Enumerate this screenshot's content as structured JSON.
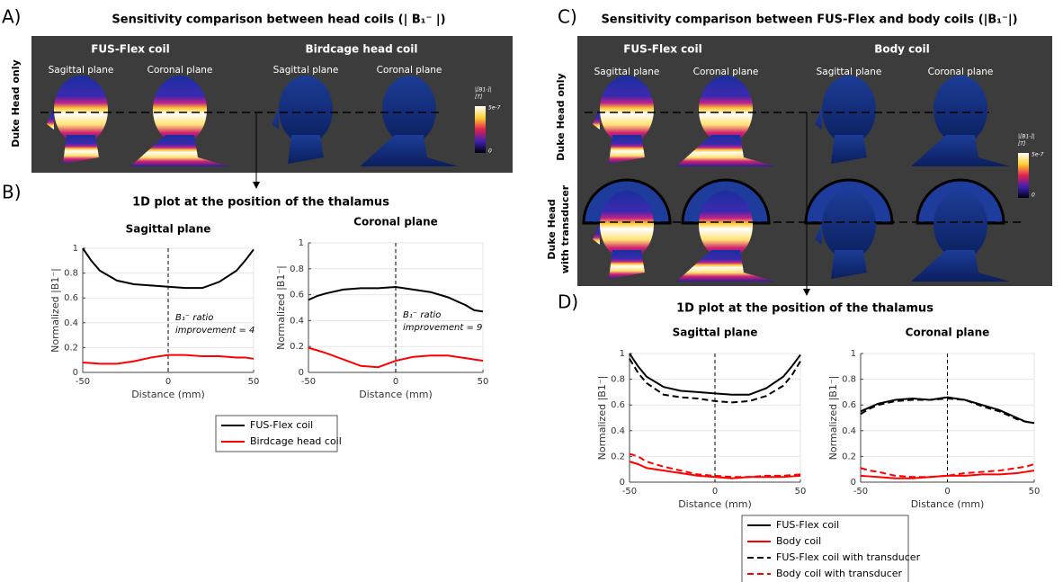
{
  "panels": {
    "A": {
      "label": "A)",
      "title": "Sensitivity comparison between head coils (| B₁⁻ |)",
      "groups": [
        {
          "name": "FUS-Flex coil",
          "planes": [
            "Sagittal plane",
            "Coronal plane"
          ]
        },
        {
          "name": "Birdcage head coil",
          "planes": [
            "Sagittal plane",
            "Coronal plane"
          ]
        }
      ],
      "row_labels": [
        "Duke Head only"
      ],
      "colorbar": {
        "title": [
          "|[B1-]|",
          "[T]"
        ],
        "max": "5e-7",
        "min": "0"
      }
    },
    "B": {
      "label": "B)",
      "title": "1D plot at the position of the thalamus"
    },
    "C": {
      "label": "C)",
      "title": "Sensitivity comparison between FUS-Flex and body coils (|B₁⁻|)",
      "groups": [
        {
          "name": "FUS-Flex coil",
          "planes": [
            "Sagittal plane",
            "Coronal plane"
          ]
        },
        {
          "name": "Body coil",
          "planes": [
            "Sagittal plane",
            "Coronal plane"
          ]
        }
      ],
      "row_labels": [
        "Duke Head only",
        "Duke Head",
        "with transducer"
      ],
      "colorbar": {
        "title": [
          "|[B1-]|",
          "[T]"
        ],
        "max": "5e-7",
        "min": "0"
      }
    },
    "D": {
      "label": "D)",
      "title": "1D plot at the position of the thalamus"
    }
  },
  "chart_data": [
    {
      "type": "line",
      "title": "Sagittal plane",
      "xlabel": "Distance (mm)",
      "ylabel": "Normalized |B1⁻|",
      "x": [
        -50,
        -45,
        -40,
        -30,
        -20,
        -10,
        0,
        10,
        20,
        30,
        40,
        45,
        50
      ],
      "series": [
        {
          "name": "FUS-Flex coil",
          "color": "#000000",
          "dashed": false,
          "values": [
            1.0,
            0.9,
            0.82,
            0.74,
            0.71,
            0.7,
            0.69,
            0.68,
            0.68,
            0.73,
            0.82,
            0.9,
            0.99
          ]
        },
        {
          "name": "Birdcage head coil",
          "color": "#ff0000",
          "dashed": false,
          "values": [
            0.08,
            0.075,
            0.07,
            0.07,
            0.09,
            0.12,
            0.14,
            0.14,
            0.13,
            0.13,
            0.12,
            0.12,
            0.11
          ]
        }
      ],
      "xlim": [
        -50,
        50
      ],
      "xticks": [
        -50,
        0,
        50
      ],
      "ylim": [
        0,
        1
      ],
      "yticks": [
        0,
        0.2,
        0.4,
        0.6,
        0.8,
        1
      ],
      "grid": true,
      "vline": 0,
      "annotation": [
        "B₁⁻ ratio",
        "improvement = 4"
      ]
    },
    {
      "type": "line",
      "title": "Coronal plane",
      "xlabel": "Distance (mm)",
      "ylabel": "Normalized |B1⁻|",
      "x": [
        -50,
        -45,
        -40,
        -30,
        -20,
        -10,
        0,
        10,
        20,
        30,
        40,
        45,
        50
      ],
      "series": [
        {
          "color": "#000000",
          "dashed": false,
          "values": [
            0.56,
            0.59,
            0.61,
            0.64,
            0.65,
            0.65,
            0.66,
            0.64,
            0.62,
            0.58,
            0.52,
            0.48,
            0.47
          ]
        },
        {
          "color": "#ff0000",
          "dashed": false,
          "values": [
            0.19,
            0.17,
            0.15,
            0.1,
            0.05,
            0.04,
            0.09,
            0.12,
            0.13,
            0.13,
            0.11,
            0.1,
            0.09
          ]
        }
      ],
      "xlim": [
        -50,
        50
      ],
      "xticks": [
        -50,
        0,
        50
      ],
      "ylim": [
        0,
        1
      ],
      "yticks": [
        0,
        0.2,
        0.4,
        0.6,
        0.8,
        1
      ],
      "grid": true,
      "vline": 0,
      "annotation": [
        "B₁⁻ ratio",
        "improvement = 9"
      ]
    },
    {
      "type": "line",
      "title": "Sagittal plane",
      "xlabel": "Distance (mm)",
      "ylabel": "Normalized |B1⁻|",
      "x": [
        -50,
        -45,
        -40,
        -30,
        -20,
        -10,
        0,
        10,
        20,
        30,
        40,
        45,
        50
      ],
      "series": [
        {
          "name": "FUS-Flex coil",
          "color": "#000000",
          "dashed": false,
          "values": [
            1.0,
            0.9,
            0.82,
            0.74,
            0.71,
            0.7,
            0.69,
            0.68,
            0.68,
            0.73,
            0.82,
            0.9,
            0.99
          ]
        },
        {
          "name": "Body coil",
          "color": "#ff0000",
          "dashed": false,
          "values": [
            0.16,
            0.14,
            0.11,
            0.09,
            0.07,
            0.05,
            0.04,
            0.03,
            0.04,
            0.04,
            0.04,
            0.045,
            0.05
          ]
        },
        {
          "name": "FUS-Flex coil with transducer",
          "color": "#000000",
          "dashed": true,
          "values": [
            0.96,
            0.85,
            0.77,
            0.68,
            0.66,
            0.65,
            0.63,
            0.62,
            0.63,
            0.67,
            0.75,
            0.83,
            0.94
          ]
        },
        {
          "name": "Body coil with transducer",
          "color": "#ff0000",
          "dashed": true,
          "values": [
            0.22,
            0.2,
            0.16,
            0.12,
            0.09,
            0.06,
            0.05,
            0.04,
            0.04,
            0.05,
            0.05,
            0.055,
            0.06
          ]
        }
      ],
      "xlim": [
        -50,
        50
      ],
      "xticks": [
        -50,
        0,
        50
      ],
      "ylim": [
        0,
        1
      ],
      "yticks": [
        0,
        0.2,
        0.4,
        0.6,
        0.8,
        1
      ],
      "grid": true,
      "vline": 0
    },
    {
      "type": "line",
      "title": "Coronal plane",
      "xlabel": "Distance (mm)",
      "ylabel": "Normalized |B1⁻|",
      "x": [
        -50,
        -45,
        -40,
        -30,
        -20,
        -10,
        0,
        10,
        20,
        30,
        40,
        45,
        50
      ],
      "series": [
        {
          "color": "#000000",
          "dashed": false,
          "values": [
            0.55,
            0.58,
            0.61,
            0.64,
            0.65,
            0.64,
            0.66,
            0.64,
            0.6,
            0.56,
            0.5,
            0.47,
            0.46
          ]
        },
        {
          "color": "#ff0000",
          "dashed": false,
          "values": [
            0.05,
            0.045,
            0.04,
            0.03,
            0.03,
            0.04,
            0.05,
            0.05,
            0.06,
            0.06,
            0.07,
            0.08,
            0.09
          ]
        },
        {
          "color": "#000000",
          "dashed": true,
          "values": [
            0.53,
            0.57,
            0.6,
            0.63,
            0.64,
            0.64,
            0.65,
            0.64,
            0.59,
            0.55,
            0.49,
            0.47,
            0.46
          ]
        },
        {
          "color": "#ff0000",
          "dashed": true,
          "values": [
            0.11,
            0.09,
            0.08,
            0.05,
            0.04,
            0.04,
            0.05,
            0.07,
            0.08,
            0.09,
            0.11,
            0.12,
            0.14
          ]
        }
      ],
      "xlim": [
        -50,
        50
      ],
      "xticks": [
        -50,
        0,
        50
      ],
      "ylim": [
        0,
        1
      ],
      "yticks": [
        0,
        0.2,
        0.4,
        0.6,
        0.8,
        1
      ],
      "grid": true,
      "vline": 0
    }
  ]
}
